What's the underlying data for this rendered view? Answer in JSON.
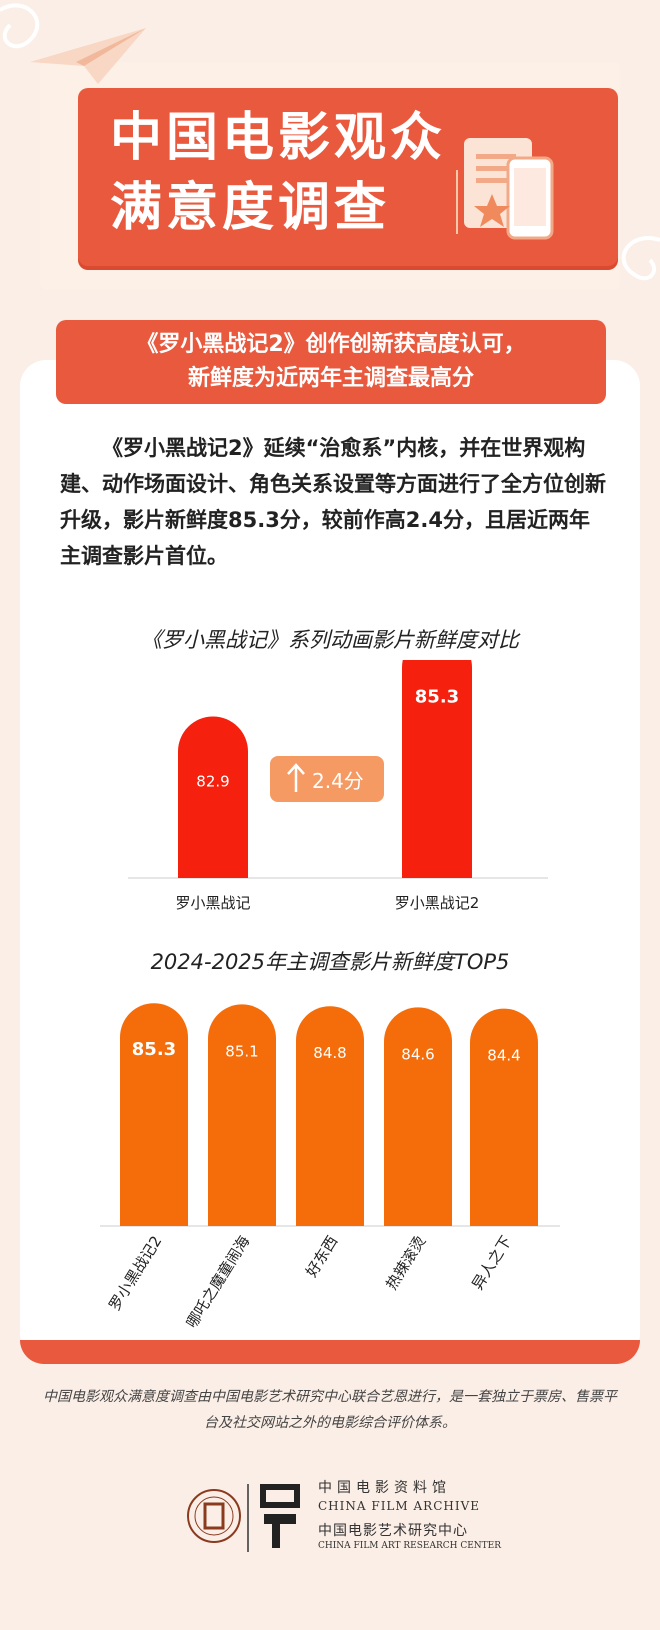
{
  "header": {
    "title_line1": "中国电影观众",
    "title_line2": "满意度调查"
  },
  "subtitle": {
    "line1": "《罗小黑战记2》创作创新获高度认可，",
    "line2": "新鲜度为近两年主调查最高分"
  },
  "body_text": "《罗小黑战记2》延续“治愈系”内核，并在世界观构建、动作场面设计、角色关系设置等方面进行了全方位创新升级，影片新鲜度85.3分，较前作高2.4分，且居近两年主调查影片首位。",
  "chart_data": [
    {
      "type": "bar",
      "title": "《罗小黑战记》系列动画影片新鲜度对比",
      "categories": [
        "罗小黑战记",
        "罗小黑战记2"
      ],
      "values": [
        82.9,
        85.3
      ],
      "value_labels": [
        "82.9",
        "85.3"
      ],
      "annotation": "2.4分",
      "annotation_icon": "arrow-up-icon",
      "colors": [
        "#f5200e",
        "#f5200e"
      ],
      "annotation_color": "#f59a62",
      "ylim": [
        0,
        100
      ],
      "grid": false
    },
    {
      "type": "bar",
      "title": "2024-2025年主调查影片新鲜度TOP5",
      "categories": [
        "罗小黑战记2",
        "哪吒之魔童闹海",
        "好东西",
        "热辣滚烫",
        "异人之下"
      ],
      "values": [
        85.3,
        85.1,
        84.8,
        84.6,
        84.4
      ],
      "value_labels": [
        "85.3",
        "85.1",
        "84.8",
        "84.6",
        "84.4"
      ],
      "colors": [
        "#f56d0a"
      ],
      "ylim": [
        0,
        100
      ],
      "grid": false
    }
  ],
  "footer": {
    "note": "中国电影观众满意度调查由中国电影艺术研究中心联合艺恩进行，是一套独立于票房、售票平台及社交网站之外的电影综合评价体系。",
    "archive_cn": "中国电影资料馆",
    "archive_en": "CHINA FILM ARCHIVE",
    "center_cn": "中国电影艺术研究中心",
    "center_en": "CHINA FILM ART RESEARCH CENTER"
  },
  "colors": {
    "accent": "#e8593e",
    "background": "#fbeee6",
    "bar_red": "#f5200e",
    "bar_orange": "#f56d0a"
  },
  "icons": [
    "paper-plane-icon",
    "document-icon",
    "phone-icon",
    "pencil-icon",
    "star-icon",
    "arrow-up-icon",
    "archive-seal-icon",
    "film-archive-logo-icon"
  ]
}
